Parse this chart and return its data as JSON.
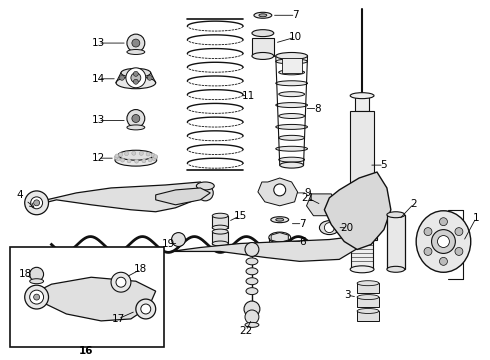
{
  "background_color": "#ffffff",
  "line_color": "#111111",
  "fig_width": 4.9,
  "fig_height": 3.6,
  "dpi": 100
}
